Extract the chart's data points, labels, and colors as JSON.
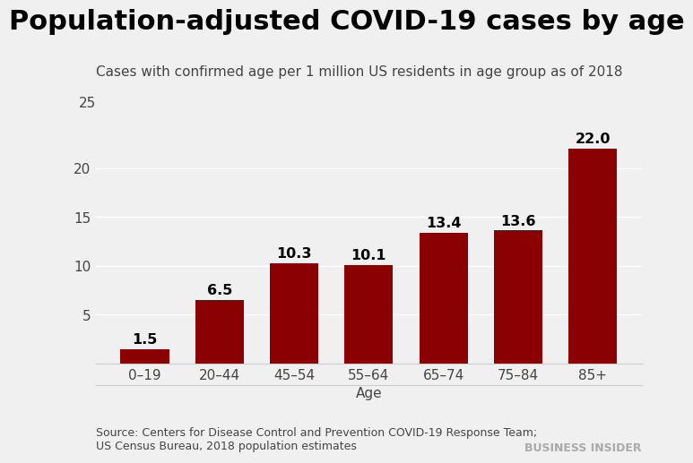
{
  "title": "Population-adjusted COVID-19 cases by age",
  "subtitle": "Cases with confirmed age per 1 million US residents in age group as of 2018",
  "categories": [
    "0–19",
    "20–44",
    "45–54",
    "55–64",
    "65–74",
    "75–84",
    "85+"
  ],
  "values": [
    1.5,
    6.5,
    10.3,
    10.1,
    13.4,
    13.6,
    22.0
  ],
  "bar_color": "#8B0000",
  "xlabel": "Age",
  "ylim": [
    0,
    25
  ],
  "yticks": [
    0,
    5,
    10,
    15,
    20,
    25
  ],
  "title_fontsize": 22,
  "subtitle_fontsize": 11,
  "xlabel_fontsize": 11,
  "tick_fontsize": 11,
  "source_text": "Source: Centers for Disease Control and Prevention COVID-19 Response Team;\nUS Census Bureau, 2018 population estimates",
  "brand_text": "BUSINESS INSIDER",
  "background_color": "#f0f0f0",
  "bar_label_fontsize": 11.5,
  "grid_color": "#ffffff",
  "text_color": "#444444",
  "brand_color": "#aaaaaa"
}
